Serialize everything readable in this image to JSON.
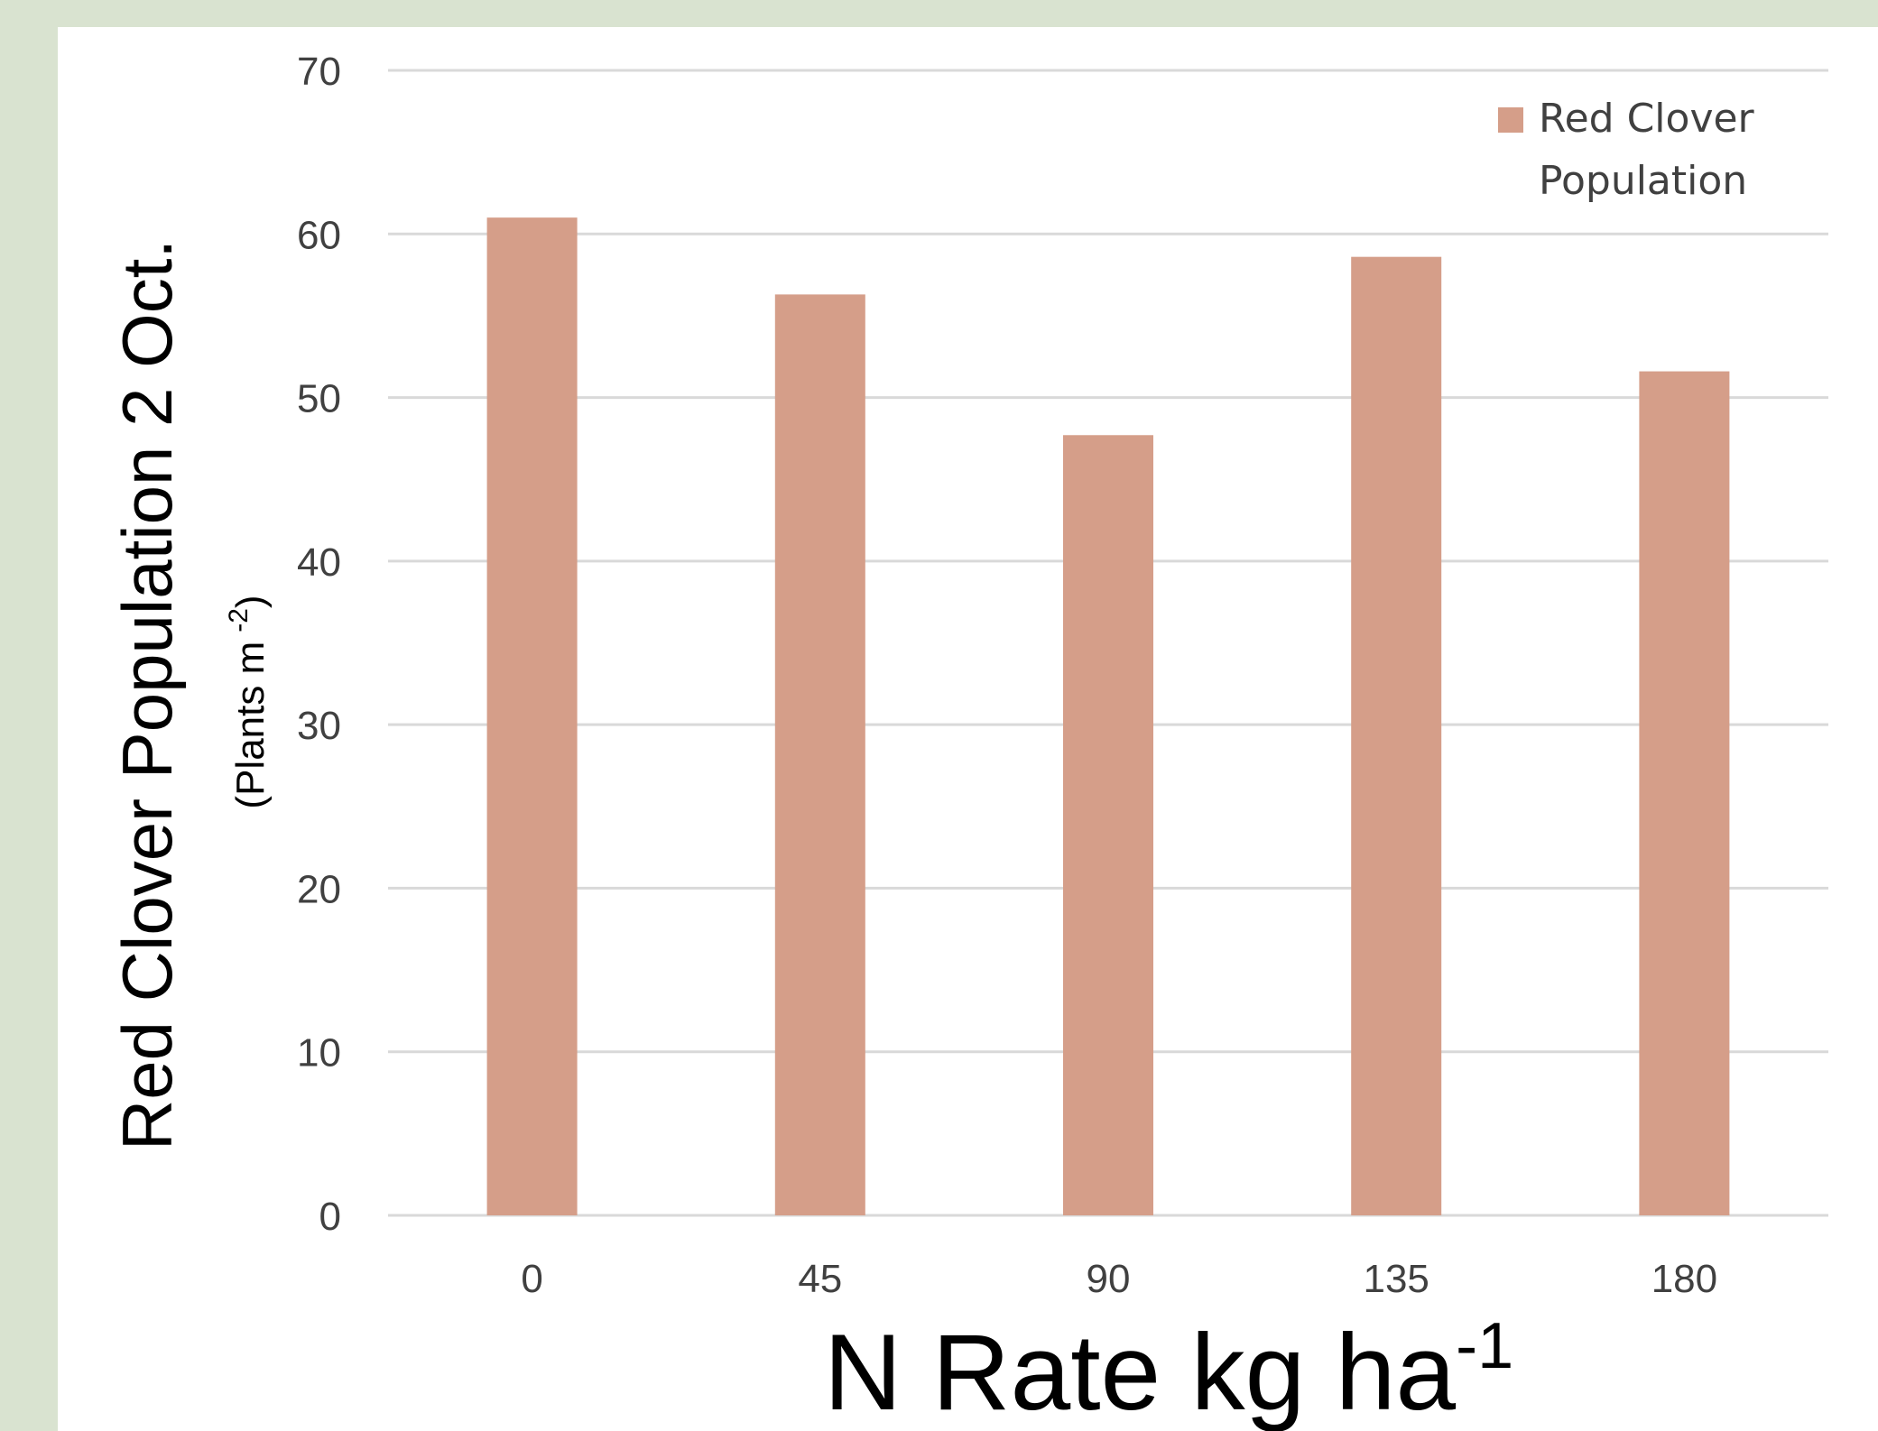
{
  "chart_data": {
    "type": "bar",
    "categories": [
      "0",
      "45",
      "90",
      "135",
      "180"
    ],
    "series": [
      {
        "name": "Red Clover Population",
        "values": [
          61,
          56.3,
          47.7,
          58.6,
          51.6
        ],
        "color": "#d59e89"
      }
    ],
    "ylabel": "Red Clover Population 2 Oct.",
    "ylabel_sub": "(Plants m",
    "ylabel_sub_sup": "-2",
    "ylabel_sub_close": ")",
    "xlabel": "N Rate kg ha",
    "xlabel_sup": "-1",
    "ylim": [
      0,
      70
    ],
    "yticks": [
      0,
      10,
      20,
      30,
      40,
      50,
      60,
      70
    ],
    "grid": true,
    "legend_position": "top-right",
    "legend_lines": [
      "Red Clover",
      "Population"
    ],
    "gridline_color": "#d9d9d9",
    "background_color": "#d9e3d0"
  }
}
